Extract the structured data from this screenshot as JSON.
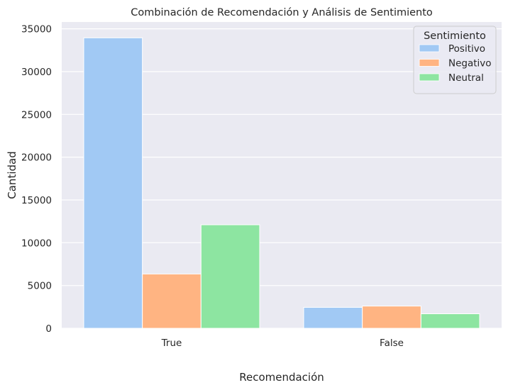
{
  "chart_data": {
    "type": "bar",
    "title": "Combinación de Recomendación y Análisis de Sentimiento",
    "xlabel": "Recomendación",
    "ylabel": "Cantidad",
    "categories": [
      "True",
      "False"
    ],
    "series": [
      {
        "name": "Positivo",
        "values": [
          33950,
          2450
        ],
        "color": "#a1c9f4"
      },
      {
        "name": "Negativo",
        "values": [
          6350,
          2600
        ],
        "color": "#ffb482"
      },
      {
        "name": "Neutral",
        "values": [
          12100,
          1700
        ],
        "color": "#8de5a1"
      }
    ],
    "ylim": [
      0,
      35800
    ],
    "yticks": [
      0,
      5000,
      10000,
      15000,
      20000,
      25000,
      30000,
      35000
    ],
    "legend": {
      "title": "Sentimiento",
      "position": "top-right"
    },
    "grid": true,
    "colors": {
      "background": "#eaeaf2",
      "grid": "#ffffff"
    }
  }
}
